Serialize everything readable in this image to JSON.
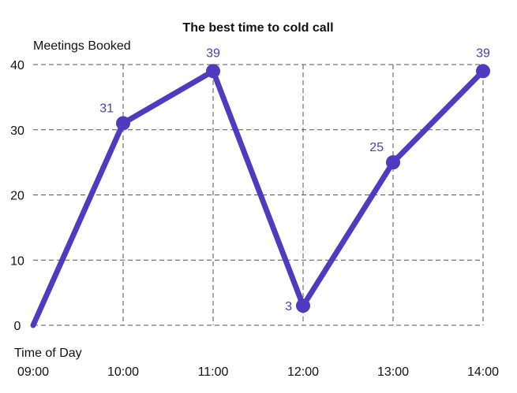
{
  "chart_data": {
    "type": "line",
    "title": "The best time to cold call",
    "ylabel": "Meetings Booked",
    "xlabel": "Time of Day",
    "categories": [
      "09:00",
      "10:00",
      "11:00",
      "12:00",
      "13:00",
      "14:00"
    ],
    "series": [
      {
        "values": [
          0,
          31,
          39,
          3,
          25,
          39
        ]
      }
    ],
    "data_labels": [
      "",
      "31",
      "39",
      "3",
      "25",
      "39"
    ],
    "yticks": [
      0,
      10,
      20,
      30,
      40
    ],
    "ylim": [
      0,
      40
    ],
    "grid": true,
    "color": "#4F3BBF"
  }
}
